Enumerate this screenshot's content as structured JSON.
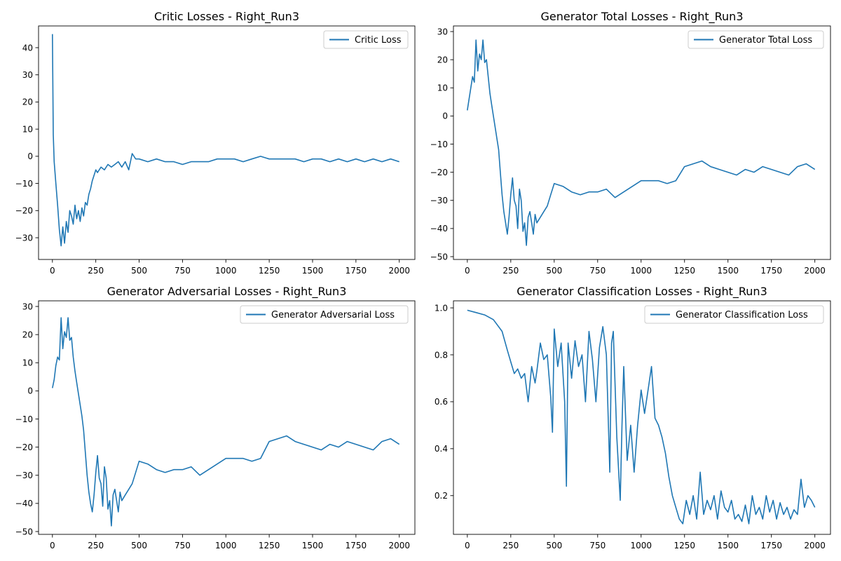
{
  "figure": {
    "background": "#ffffff",
    "line_color": "#1f77b4"
  },
  "chart_data": [
    {
      "type": "line",
      "title": "Critic Losses - Right_Run3",
      "xlabel": "",
      "ylabel": "",
      "xlim": [
        -80,
        2090
      ],
      "ylim": [
        -38,
        48
      ],
      "xticks": [
        0,
        250,
        500,
        750,
        1000,
        1250,
        1500,
        1750,
        2000
      ],
      "yticks": [
        -30,
        -20,
        -10,
        0,
        10,
        20,
        30,
        40
      ],
      "legend": "upper-right",
      "grid": false,
      "series": [
        {
          "name": "Critic Loss",
          "color": "#1f77b4",
          "x": [
            0,
            5,
            10,
            15,
            20,
            30,
            40,
            50,
            60,
            70,
            80,
            90,
            100,
            110,
            120,
            130,
            140,
            150,
            160,
            170,
            180,
            190,
            200,
            210,
            220,
            230,
            240,
            250,
            260,
            280,
            300,
            320,
            340,
            360,
            380,
            400,
            420,
            440,
            460,
            480,
            500,
            550,
            600,
            650,
            700,
            750,
            800,
            850,
            900,
            950,
            1000,
            1050,
            1100,
            1150,
            1200,
            1250,
            1300,
            1350,
            1400,
            1450,
            1500,
            1550,
            1600,
            1650,
            1700,
            1750,
            1800,
            1850,
            1900,
            1950,
            2000
          ],
          "values": [
            45,
            8,
            -2,
            -6,
            -10,
            -18,
            -27,
            -33,
            -26,
            -32,
            -24,
            -28,
            -20,
            -22,
            -25,
            -18,
            -23,
            -20,
            -24,
            -19,
            -22,
            -17,
            -18,
            -14,
            -12,
            -9,
            -7,
            -5,
            -6,
            -4,
            -5,
            -3,
            -4,
            -3,
            -2,
            -4,
            -2,
            -5,
            1,
            -1,
            -1,
            -2,
            -1,
            -2,
            -2,
            -3,
            -2,
            -2,
            -2,
            -1,
            -1,
            -1,
            -2,
            -1,
            0,
            -1,
            -1,
            -1,
            -1,
            -2,
            -1,
            -1,
            -2,
            -1,
            -2,
            -1,
            -2,
            -1,
            -2,
            -1,
            -2
          ]
        }
      ]
    },
    {
      "type": "line",
      "title": "Generator Total Losses - Right_Run3",
      "xlabel": "",
      "ylabel": "",
      "xlim": [
        -80,
        2090
      ],
      "ylim": [
        -51,
        32
      ],
      "xticks": [
        0,
        250,
        500,
        750,
        1000,
        1250,
        1500,
        1750,
        2000
      ],
      "yticks": [
        -50,
        -40,
        -30,
        -20,
        -10,
        0,
        10,
        20,
        30
      ],
      "legend": "upper-right",
      "grid": false,
      "series": [
        {
          "name": "Generator Total Loss",
          "color": "#1f77b4",
          "x": [
            0,
            10,
            20,
            30,
            40,
            50,
            60,
            70,
            80,
            90,
            100,
            110,
            120,
            130,
            140,
            150,
            160,
            170,
            180,
            190,
            200,
            210,
            220,
            230,
            240,
            250,
            260,
            270,
            280,
            290,
            300,
            310,
            320,
            330,
            340,
            350,
            360,
            370,
            380,
            390,
            400,
            420,
            440,
            460,
            480,
            500,
            550,
            600,
            650,
            700,
            750,
            800,
            850,
            900,
            950,
            1000,
            1050,
            1100,
            1150,
            1200,
            1250,
            1300,
            1350,
            1400,
            1450,
            1500,
            1550,
            1600,
            1650,
            1700,
            1750,
            1800,
            1850,
            1900,
            1950,
            2000
          ],
          "values": [
            2,
            6,
            10,
            14,
            12,
            27,
            16,
            22,
            20,
            27,
            19,
            20,
            14,
            8,
            4,
            0,
            -4,
            -8,
            -12,
            -20,
            -28,
            -34,
            -38,
            -42,
            -36,
            -28,
            -22,
            -30,
            -32,
            -40,
            -26,
            -30,
            -41,
            -38,
            -46,
            -36,
            -34,
            -38,
            -42,
            -35,
            -38,
            -36,
            -34,
            -32,
            -28,
            -24,
            -25,
            -27,
            -28,
            -27,
            -27,
            -26,
            -29,
            -27,
            -25,
            -23,
            -23,
            -23,
            -24,
            -23,
            -18,
            -17,
            -16,
            -18,
            -19,
            -20,
            -21,
            -19,
            -20,
            -18,
            -19,
            -20,
            -21,
            -18,
            -17,
            -19
          ]
        }
      ]
    },
    {
      "type": "line",
      "title": "Generator Adversarial Losses - Right_Run3",
      "xlabel": "",
      "ylabel": "",
      "xlim": [
        -80,
        2090
      ],
      "ylim": [
        -51,
        32
      ],
      "xticks": [
        0,
        250,
        500,
        750,
        1000,
        1250,
        1500,
        1750,
        2000
      ],
      "yticks": [
        -50,
        -40,
        -30,
        -20,
        -10,
        0,
        10,
        20,
        30
      ],
      "legend": "upper-right",
      "grid": false,
      "series": [
        {
          "name": "Generator Adversarial Loss",
          "color": "#1f77b4",
          "x": [
            0,
            10,
            20,
            30,
            40,
            50,
            60,
            70,
            80,
            90,
            100,
            110,
            120,
            130,
            140,
            150,
            160,
            170,
            180,
            190,
            200,
            210,
            220,
            230,
            240,
            250,
            260,
            270,
            280,
            290,
            300,
            310,
            320,
            330,
            340,
            350,
            360,
            370,
            380,
            390,
            400,
            420,
            440,
            460,
            480,
            500,
            550,
            600,
            650,
            700,
            750,
            800,
            850,
            900,
            950,
            1000,
            1050,
            1100,
            1150,
            1200,
            1250,
            1300,
            1350,
            1400,
            1450,
            1500,
            1550,
            1600,
            1650,
            1700,
            1750,
            1800,
            1850,
            1900,
            1950,
            2000
          ],
          "values": [
            1,
            4,
            9,
            12,
            11,
            26,
            15,
            21,
            19,
            26,
            18,
            19,
            12,
            7,
            3,
            -1,
            -5,
            -9,
            -14,
            -22,
            -30,
            -36,
            -40,
            -43,
            -37,
            -29,
            -23,
            -31,
            -33,
            -41,
            -27,
            -31,
            -42,
            -39,
            -48,
            -37,
            -35,
            -39,
            -43,
            -36,
            -39,
            -37,
            -35,
            -33,
            -29,
            -25,
            -26,
            -28,
            -29,
            -28,
            -28,
            -27,
            -30,
            -28,
            -26,
            -24,
            -24,
            -24,
            -25,
            -24,
            -18,
            -17,
            -16,
            -18,
            -19,
            -20,
            -21,
            -19,
            -20,
            -18,
            -19,
            -20,
            -21,
            -18,
            -17,
            -19
          ]
        }
      ]
    },
    {
      "type": "line",
      "title": "Generator Classification Losses - Right_Run3",
      "xlabel": "",
      "ylabel": "",
      "xlim": [
        -80,
        2090
      ],
      "ylim": [
        0.035,
        1.03
      ],
      "xticks": [
        0,
        250,
        500,
        750,
        1000,
        1250,
        1500,
        1750,
        2000
      ],
      "yticks": [
        0.2,
        0.4,
        0.6,
        0.8,
        1.0
      ],
      "ytick_labels": [
        "0.2",
        "0.4",
        "0.6",
        "0.8",
        "1.0"
      ],
      "legend": "upper-right",
      "grid": false,
      "series": [
        {
          "name": "Generator Classification Loss",
          "color": "#1f77b4",
          "x": [
            0,
            50,
            100,
            150,
            200,
            230,
            250,
            270,
            290,
            310,
            330,
            350,
            370,
            390,
            400,
            420,
            440,
            460,
            480,
            490,
            500,
            520,
            540,
            560,
            570,
            580,
            600,
            620,
            640,
            660,
            680,
            700,
            720,
            740,
            760,
            780,
            800,
            820,
            830,
            840,
            860,
            880,
            890,
            900,
            920,
            940,
            960,
            980,
            1000,
            1020,
            1040,
            1060,
            1080,
            1100,
            1120,
            1140,
            1160,
            1180,
            1200,
            1220,
            1240,
            1260,
            1280,
            1300,
            1320,
            1340,
            1360,
            1380,
            1400,
            1420,
            1440,
            1460,
            1480,
            1500,
            1520,
            1540,
            1560,
            1580,
            1600,
            1620,
            1640,
            1660,
            1680,
            1700,
            1720,
            1740,
            1760,
            1780,
            1800,
            1820,
            1840,
            1860,
            1880,
            1900,
            1920,
            1940,
            1960,
            1980,
            2000
          ],
          "values": [
            0.99,
            0.98,
            0.97,
            0.95,
            0.9,
            0.82,
            0.77,
            0.72,
            0.74,
            0.7,
            0.72,
            0.6,
            0.75,
            0.68,
            0.73,
            0.85,
            0.78,
            0.8,
            0.62,
            0.47,
            0.91,
            0.75,
            0.85,
            0.6,
            0.24,
            0.85,
            0.7,
            0.86,
            0.75,
            0.8,
            0.6,
            0.9,
            0.78,
            0.6,
            0.83,
            0.92,
            0.8,
            0.3,
            0.85,
            0.9,
            0.45,
            0.18,
            0.5,
            0.75,
            0.35,
            0.5,
            0.3,
            0.5,
            0.65,
            0.55,
            0.65,
            0.75,
            0.53,
            0.5,
            0.45,
            0.38,
            0.28,
            0.2,
            0.15,
            0.1,
            0.08,
            0.18,
            0.12,
            0.2,
            0.1,
            0.3,
            0.12,
            0.18,
            0.14,
            0.2,
            0.1,
            0.22,
            0.15,
            0.13,
            0.18,
            0.1,
            0.12,
            0.09,
            0.16,
            0.08,
            0.2,
            0.12,
            0.15,
            0.1,
            0.2,
            0.13,
            0.18,
            0.1,
            0.17,
            0.12,
            0.15,
            0.1,
            0.14,
            0.12,
            0.27,
            0.15,
            0.2,
            0.18,
            0.15
          ]
        }
      ]
    }
  ]
}
